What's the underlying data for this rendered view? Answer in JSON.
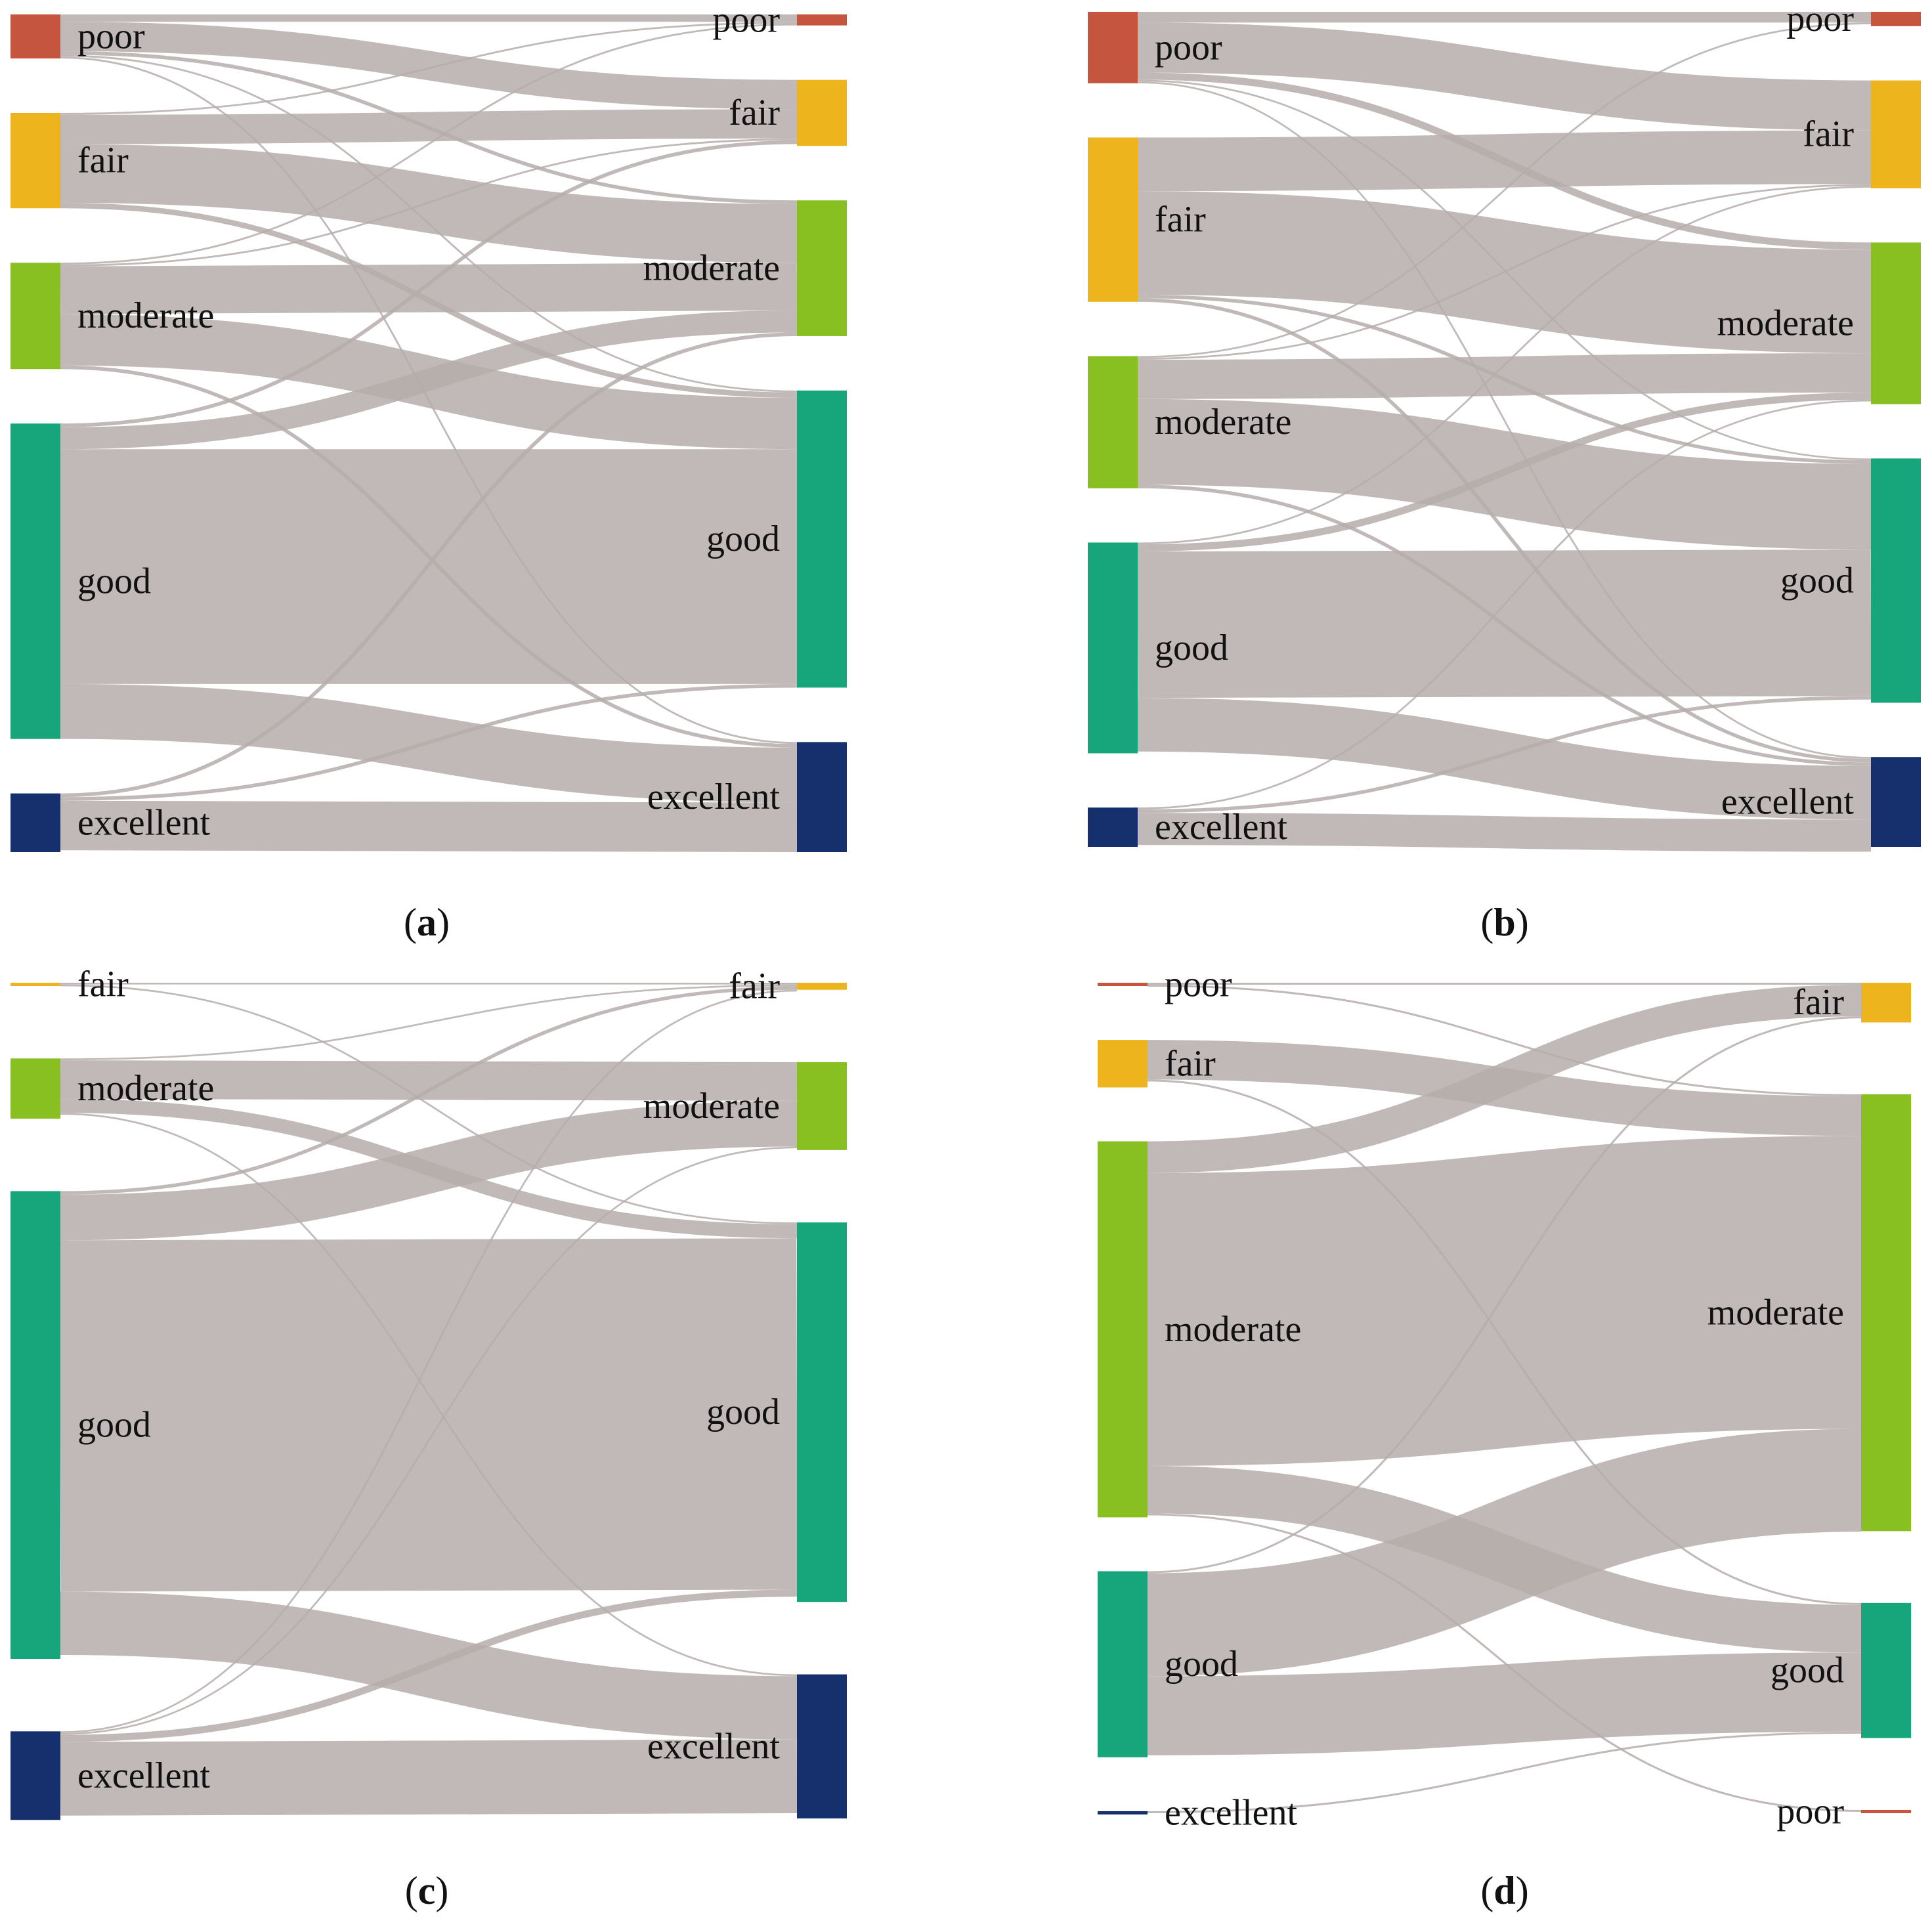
{
  "colors": {
    "poor": "#C65540",
    "fair": "#EDB41E",
    "moderate": "#88C021",
    "good": "#17A67C",
    "excellent": "#16306E",
    "link": "#B5ADAA",
    "link_opacity": 0.85
  },
  "chart_data": [
    {
      "type": "sankey",
      "panel": "a",
      "left_nodes": [
        {
          "key": "poor",
          "label": "poor",
          "value": 12
        },
        {
          "key": "fair",
          "label": "fair",
          "value": 26
        },
        {
          "key": "moderate",
          "label": "moderate",
          "value": 29
        },
        {
          "key": "good",
          "label": "good",
          "value": 86
        },
        {
          "key": "excellent",
          "label": "excellent",
          "value": 16
        }
      ],
      "right_nodes": [
        {
          "key": "poor",
          "label": "poor",
          "value": 3
        },
        {
          "key": "fair",
          "label": "fair",
          "value": 18
        },
        {
          "key": "moderate",
          "label": "moderate",
          "value": 37
        },
        {
          "key": "good",
          "label": "good",
          "value": 81
        },
        {
          "key": "excellent",
          "label": "excellent",
          "value": 30
        }
      ],
      "links": [
        {
          "from": "poor",
          "to": "poor",
          "value": 2
        },
        {
          "from": "poor",
          "to": "fair",
          "value": 8
        },
        {
          "from": "poor",
          "to": "moderate",
          "value": 1
        },
        {
          "from": "poor",
          "to": "good",
          "value": 0.5
        },
        {
          "from": "poor",
          "to": "excellent",
          "value": 0.5
        },
        {
          "from": "fair",
          "to": "poor",
          "value": 0.5
        },
        {
          "from": "fair",
          "to": "fair",
          "value": 8
        },
        {
          "from": "fair",
          "to": "moderate",
          "value": 16
        },
        {
          "from": "fair",
          "to": "good",
          "value": 1.5
        },
        {
          "from": "moderate",
          "to": "poor",
          "value": 0.5
        },
        {
          "from": "moderate",
          "to": "fair",
          "value": 0.5
        },
        {
          "from": "moderate",
          "to": "moderate",
          "value": 13
        },
        {
          "from": "moderate",
          "to": "good",
          "value": 14
        },
        {
          "from": "moderate",
          "to": "excellent",
          "value": 1
        },
        {
          "from": "good",
          "to": "fair",
          "value": 1
        },
        {
          "from": "good",
          "to": "moderate",
          "value": 6
        },
        {
          "from": "good",
          "to": "good",
          "value": 64
        },
        {
          "from": "good",
          "to": "excellent",
          "value": 15
        },
        {
          "from": "excellent",
          "to": "moderate",
          "value": 1
        },
        {
          "from": "excellent",
          "to": "good",
          "value": 1
        },
        {
          "from": "excellent",
          "to": "excellent",
          "value": 13.5
        }
      ]
    },
    {
      "type": "sankey",
      "panel": "b",
      "left_nodes": [
        {
          "key": "poor",
          "label": "poor",
          "value": 20
        },
        {
          "key": "fair",
          "label": "fair",
          "value": 46
        },
        {
          "key": "moderate",
          "label": "moderate",
          "value": 37
        },
        {
          "key": "good",
          "label": "good",
          "value": 59
        },
        {
          "key": "excellent",
          "label": "excellent",
          "value": 11
        }
      ],
      "right_nodes": [
        {
          "key": "poor",
          "label": "poor",
          "value": 4
        },
        {
          "key": "fair",
          "label": "fair",
          "value": 30
        },
        {
          "key": "moderate",
          "label": "moderate",
          "value": 45
        },
        {
          "key": "good",
          "label": "good",
          "value": 68
        },
        {
          "key": "excellent",
          "label": "excellent",
          "value": 25
        }
      ],
      "links": [
        {
          "from": "poor",
          "to": "poor",
          "value": 3
        },
        {
          "from": "poor",
          "to": "fair",
          "value": 14
        },
        {
          "from": "poor",
          "to": "moderate",
          "value": 2
        },
        {
          "from": "poor",
          "to": "good",
          "value": 0.5
        },
        {
          "from": "poor",
          "to": "excellent",
          "value": 0.5
        },
        {
          "from": "fair",
          "to": "fair",
          "value": 15
        },
        {
          "from": "fair",
          "to": "moderate",
          "value": 29
        },
        {
          "from": "fair",
          "to": "good",
          "value": 1
        },
        {
          "from": "fair",
          "to": "excellent",
          "value": 1
        },
        {
          "from": "moderate",
          "to": "poor",
          "value": 0.5
        },
        {
          "from": "moderate",
          "to": "fair",
          "value": 0.5
        },
        {
          "from": "moderate",
          "to": "moderate",
          "value": 11
        },
        {
          "from": "moderate",
          "to": "good",
          "value": 24
        },
        {
          "from": "moderate",
          "to": "excellent",
          "value": 1
        },
        {
          "from": "good",
          "to": "fair",
          "value": 0.5
        },
        {
          "from": "good",
          "to": "moderate",
          "value": 2
        },
        {
          "from": "good",
          "to": "good",
          "value": 41
        },
        {
          "from": "good",
          "to": "excellent",
          "value": 15
        },
        {
          "from": "excellent",
          "to": "moderate",
          "value": 0.5
        },
        {
          "from": "excellent",
          "to": "good",
          "value": 1
        },
        {
          "from": "excellent",
          "to": "excellent",
          "value": 9
        }
      ]
    },
    {
      "type": "sankey",
      "panel": "c",
      "left_nodes": [
        {
          "key": "fair",
          "label": "fair",
          "value": 0.5
        },
        {
          "key": "moderate",
          "label": "moderate",
          "value": 17
        },
        {
          "key": "good",
          "label": "good",
          "value": 132
        },
        {
          "key": "excellent",
          "label": "excellent",
          "value": 25
        }
      ],
      "right_nodes": [
        {
          "key": "fair",
          "label": "fair",
          "value": 2
        },
        {
          "key": "moderate",
          "label": "moderate",
          "value": 25
        },
        {
          "key": "good",
          "label": "good",
          "value": 108
        },
        {
          "key": "excellent",
          "label": "excellent",
          "value": 41
        }
      ],
      "links": [
        {
          "from": "fair",
          "to": "fair",
          "value": 0.5
        },
        {
          "from": "fair",
          "to": "good",
          "value": 0.5
        },
        {
          "from": "moderate",
          "to": "fair",
          "value": 0.5
        },
        {
          "from": "moderate",
          "to": "moderate",
          "value": 11
        },
        {
          "from": "moderate",
          "to": "good",
          "value": 4
        },
        {
          "from": "moderate",
          "to": "excellent",
          "value": 0.5
        },
        {
          "from": "good",
          "to": "fair",
          "value": 1
        },
        {
          "from": "good",
          "to": "moderate",
          "value": 13
        },
        {
          "from": "good",
          "to": "good",
          "value": 100
        },
        {
          "from": "good",
          "to": "excellent",
          "value": 18
        },
        {
          "from": "excellent",
          "to": "fair",
          "value": 0.5
        },
        {
          "from": "excellent",
          "to": "moderate",
          "value": 0.5
        },
        {
          "from": "excellent",
          "to": "good",
          "value": 2
        },
        {
          "from": "excellent",
          "to": "excellent",
          "value": 21
        }
      ]
    },
    {
      "type": "sankey",
      "panel": "d",
      "left_nodes": [
        {
          "key": "poor",
          "label": "poor",
          "value": 0.5
        },
        {
          "key": "fair",
          "label": "fair",
          "value": 12
        },
        {
          "key": "moderate",
          "label": "moderate",
          "value": 95
        },
        {
          "key": "good",
          "label": "good",
          "value": 47
        },
        {
          "key": "excellent",
          "label": "excellent",
          "value": 0.5
        }
      ],
      "right_nodes": [
        {
          "key": "fair",
          "label": "fair",
          "value": 10
        },
        {
          "key": "moderate",
          "label": "moderate",
          "value": 110
        },
        {
          "key": "good",
          "label": "good",
          "value": 34
        },
        {
          "key": "poor",
          "label": "poor",
          "value": 0.5
        }
      ],
      "links": [
        {
          "from": "poor",
          "to": "fair",
          "value": 0.5
        },
        {
          "from": "poor",
          "to": "moderate",
          "value": 0.5
        },
        {
          "from": "fair",
          "to": "moderate",
          "value": 10
        },
        {
          "from": "fair",
          "to": "good",
          "value": 0.5
        },
        {
          "from": "moderate",
          "to": "fair",
          "value": 8
        },
        {
          "from": "moderate",
          "to": "moderate",
          "value": 74
        },
        {
          "from": "moderate",
          "to": "good",
          "value": 12
        },
        {
          "from": "moderate",
          "to": "poor",
          "value": 0.5
        },
        {
          "from": "good",
          "to": "fair",
          "value": 0.5
        },
        {
          "from": "good",
          "to": "moderate",
          "value": 26
        },
        {
          "from": "good",
          "to": "good",
          "value": 20
        },
        {
          "from": "excellent",
          "to": "good",
          "value": 0.5
        }
      ]
    }
  ]
}
